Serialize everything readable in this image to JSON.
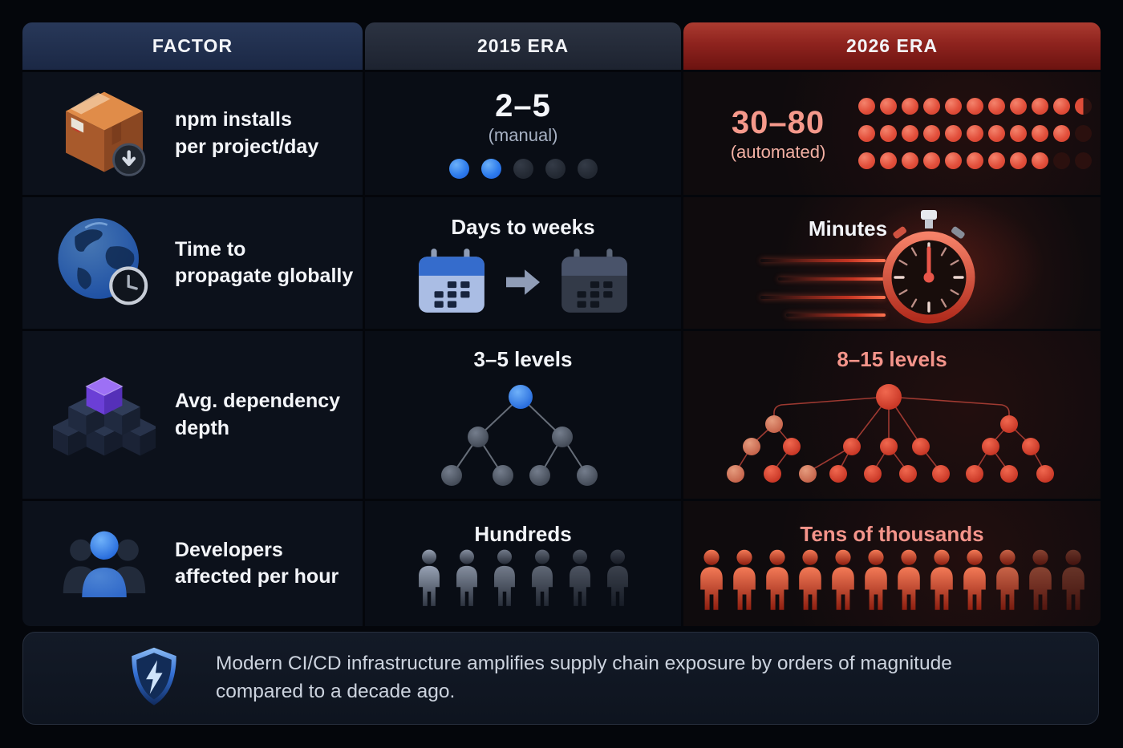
{
  "table": {
    "headers": {
      "factor": "FACTOR",
      "era2015": "2015 ERA",
      "era2026": "2026 ERA"
    },
    "rows": [
      {
        "factor": {
          "icon": "package-box-icon",
          "line1": "npm installs",
          "line2": "per project/day"
        },
        "era2015": {
          "value": "2–5",
          "note": "(manual)",
          "dots": {
            "total": 5,
            "filled": 2
          }
        },
        "era2026": {
          "value": "30–80",
          "note": "(automated)",
          "dot_grid": {
            "columns": 11,
            "rows": [
              {
                "bright": 10,
                "half": 1,
                "dim": 0
              },
              {
                "bright": 10,
                "half": 0,
                "dim": 1
              },
              {
                "bright": 9,
                "half": 0,
                "dim": 2
              }
            ]
          }
        }
      },
      {
        "factor": {
          "icon": "globe-clock-icon",
          "line1": "Time to",
          "line2": "propagate globally"
        },
        "era2015": {
          "value": "Days to weeks",
          "icons": [
            "calendar-blue-icon",
            "arrow-right-icon",
            "calendar-dark-icon"
          ]
        },
        "era2026": {
          "value": "Minutes",
          "icons": [
            "speed-lines",
            "stopwatch-icon"
          ]
        }
      },
      {
        "factor": {
          "icon": "cube-stack-icon",
          "line1": "Avg. dependency",
          "line2": "depth"
        },
        "era2015": {
          "value": "3–5 levels",
          "tree": {
            "levels": 3,
            "nodes": 7
          }
        },
        "era2026": {
          "value": "8–15 levels",
          "tree": {
            "levels": 4,
            "nodes": 20
          }
        }
      },
      {
        "factor": {
          "icon": "people-group-icon",
          "line1": "Developers",
          "line2": "affected per hour"
        },
        "era2015": {
          "value": "Hundreds",
          "figures": 6
        },
        "era2026": {
          "value": "Tens of thousands",
          "figures": 12
        }
      }
    ]
  },
  "footer": {
    "icon": "shield-bolt-icon",
    "line1": "Modern CI/CD infrastructure amplifies supply chain exposure by orders of magnitude",
    "line2": "compared to a decade ago."
  },
  "colors": {
    "background": "#04060b",
    "header_navy": "#22304f",
    "header_slate": "#272e3c",
    "header_red": "#8e231e",
    "accent_blue": "#3b82f6",
    "accent_red": "#dc4a32",
    "salmon_text": "#f5998b"
  },
  "chart_data": {
    "type": "table",
    "title": "Supply chain exposure: 2015 era vs 2026 era",
    "columns": [
      "Factor",
      "2015 Era",
      "2026 Era"
    ],
    "rows": [
      [
        "npm installs per project/day",
        "2–5 (manual)",
        "30–80 (automated)"
      ],
      [
        "Time to propagate globally",
        "Days to weeks",
        "Minutes"
      ],
      [
        "Avg. dependency depth",
        "3–5 levels",
        "8–15 levels"
      ],
      [
        "Developers affected per hour",
        "Hundreds",
        "Tens of thousands"
      ]
    ],
    "note": "Modern CI/CD infrastructure amplifies supply chain exposure by orders of magnitude compared to a decade ago."
  }
}
